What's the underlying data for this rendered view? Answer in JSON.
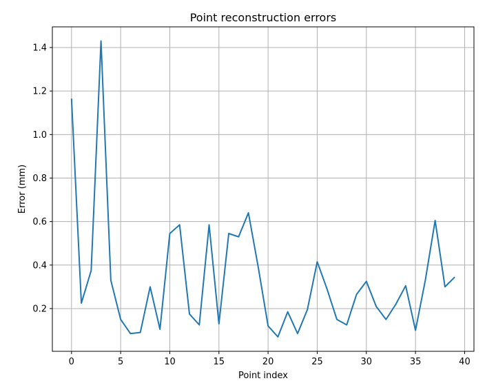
{
  "chart_data": {
    "type": "line",
    "title": "Point reconstruction errors",
    "xlabel": "Point index",
    "ylabel": "Error (mm)",
    "xlim": [
      -1.95,
      40.95
    ],
    "ylim": [
      0.0035,
      1.495
    ],
    "xticks": [
      0,
      5,
      10,
      15,
      20,
      25,
      30,
      35,
      40
    ],
    "yticks": [
      0.2,
      0.4,
      0.6,
      0.8,
      1.0,
      1.2,
      1.4
    ],
    "ytick_labels": [
      "0.2",
      "0.4",
      "0.6",
      "0.8",
      "1.0",
      "1.2",
      "1.4"
    ],
    "grid": true,
    "color": "#1f77b4",
    "series": [
      {
        "x": [
          0,
          1,
          2,
          3,
          4,
          5,
          6,
          7,
          8,
          9,
          10,
          11,
          12,
          13,
          14,
          15,
          16,
          17,
          18,
          19,
          20,
          21,
          22,
          23,
          24,
          25,
          26,
          27,
          28,
          29,
          30,
          31,
          32,
          33,
          34,
          35,
          36,
          37,
          38,
          39
        ],
        "values": [
          1.165,
          0.225,
          0.375,
          1.43,
          0.33,
          0.15,
          0.085,
          0.09,
          0.3,
          0.105,
          0.545,
          0.585,
          0.175,
          0.125,
          0.585,
          0.13,
          0.545,
          0.53,
          0.64,
          0.39,
          0.12,
          0.07,
          0.185,
          0.085,
          0.195,
          0.415,
          0.29,
          0.15,
          0.125,
          0.265,
          0.325,
          0.21,
          0.15,
          0.22,
          0.305,
          0.1,
          0.33,
          0.605,
          0.3,
          0.345
        ]
      }
    ]
  }
}
